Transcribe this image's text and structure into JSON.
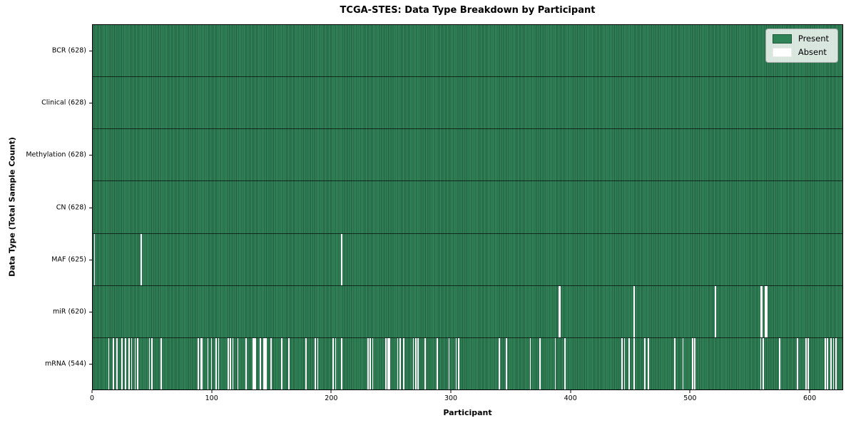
{
  "colors": {
    "present": "#2e8457",
    "absent": "#ffffff",
    "legend_background": "#dcdfdc",
    "legend_border": "#a9a9a9"
  },
  "chart_data": {
    "type": "heatmap",
    "title": "TCGA-STES: Data Type Breakdown by Participant",
    "xlabel": "Participant",
    "ylabel": "Data Type (Total Sample Count)",
    "x_range": [
      0,
      628
    ],
    "x_ticks": [
      "0",
      "100",
      "200",
      "300",
      "400",
      "500",
      "600"
    ],
    "x_tick_values": [
      0,
      100,
      200,
      300,
      400,
      500,
      600
    ],
    "grid": false,
    "legend_position": "upper right",
    "legend_labels": [
      "Present",
      "Absent"
    ],
    "cell_values": {
      "present": 1,
      "absent": 0
    },
    "rows": [
      {
        "label": "BCR (628)",
        "name": "BCR",
        "total": 628,
        "absent_participants": []
      },
      {
        "label": "Clinical (628)",
        "name": "Clinical",
        "total": 628,
        "absent_participants": []
      },
      {
        "label": "Methylation (628)",
        "name": "Methylation",
        "total": 628,
        "absent_participants": []
      },
      {
        "label": "CN (628)",
        "name": "CN",
        "total": 628,
        "absent_participants": []
      },
      {
        "label": "MAF (625)",
        "name": "MAF",
        "total": 625,
        "absent_participants": [
          1,
          40,
          208
        ]
      },
      {
        "label": "miR (620)",
        "name": "miR",
        "total": 620,
        "absent_participants": [
          390,
          391,
          453,
          521,
          559,
          560,
          563,
          564
        ]
      },
      {
        "label": "mRNA (544)",
        "name": "mRNA",
        "total": 544,
        "absent_participants": [
          13,
          17,
          20,
          24,
          27,
          30,
          32,
          35,
          37,
          47,
          49,
          57,
          88,
          90,
          91,
          96,
          99,
          103,
          105,
          113,
          115,
          117,
          121,
          128,
          134,
          135,
          136,
          140,
          143,
          144,
          145,
          149,
          158,
          164,
          178,
          186,
          188,
          201,
          203,
          208,
          230,
          232,
          234,
          245,
          247,
          248,
          255,
          257,
          260,
          268,
          270,
          272,
          278,
          288,
          298,
          304,
          306,
          340,
          346,
          366,
          374,
          387,
          395,
          443,
          445,
          449,
          453,
          462,
          465,
          487,
          494,
          502,
          504,
          559,
          561,
          575,
          590,
          597,
          599,
          613,
          615,
          618,
          620,
          622
        ]
      }
    ]
  }
}
